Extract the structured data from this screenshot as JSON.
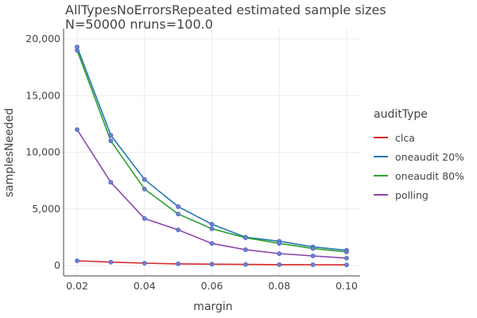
{
  "chart_data": {
    "type": "line",
    "title": "AllTypesNoErrorsRepeated estimated sample sizes",
    "subtitle": "N=50000 nruns=100.0",
    "xlabel": "margin",
    "ylabel": "samplesNeeded",
    "x": [
      0.02,
      0.03,
      0.04,
      0.05,
      0.06,
      0.07,
      0.08,
      0.09,
      0.1
    ],
    "xticks": [
      0.02,
      0.04,
      0.06,
      0.08,
      0.1
    ],
    "xtick_labels": [
      "0.02",
      "0.04",
      "0.06",
      "0.08",
      "0.10"
    ],
    "xlim": [
      0.02,
      0.1
    ],
    "yticks": [
      0,
      5000,
      10000,
      15000,
      20000
    ],
    "ytick_labels": [
      "0",
      "5,000",
      "10,000",
      "15,000",
      "20,000"
    ],
    "ylim": [
      0,
      20000
    ],
    "grid": true,
    "legend_title": "auditType",
    "legend_position": "right",
    "series": [
      {
        "name": "clca",
        "color": "#d62728",
        "values": [
          420,
          300,
          210,
          150,
          120,
          95,
          80,
          70,
          60
        ]
      },
      {
        "name": "oneaudit 20%",
        "color": "#1f77b4",
        "values": [
          19300,
          11500,
          7600,
          5200,
          3650,
          2500,
          2150,
          1650,
          1350
        ]
      },
      {
        "name": "oneaudit 80%",
        "color": "#2ca02c",
        "values": [
          19000,
          11000,
          6750,
          4550,
          3250,
          2450,
          1950,
          1500,
          1200
        ]
      },
      {
        "name": "polling",
        "color": "#8e44ad",
        "values": [
          12000,
          7350,
          4150,
          3150,
          1950,
          1400,
          1050,
          850,
          650
        ]
      }
    ],
    "marker_color": "#6a7fd8"
  }
}
